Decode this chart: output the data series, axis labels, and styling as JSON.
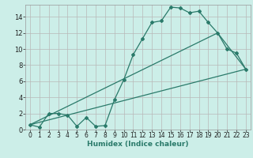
{
  "title": "",
  "xlabel": "Humidex (Indice chaleur)",
  "bg_color": "#cceee8",
  "grid_color": "#b8b8b8",
  "line_color": "#2a7a6a",
  "xlim": [
    -0.5,
    23.5
  ],
  "ylim": [
    0,
    15.5
  ],
  "xticks": [
    0,
    1,
    2,
    3,
    4,
    5,
    6,
    7,
    8,
    9,
    10,
    11,
    12,
    13,
    14,
    15,
    16,
    17,
    18,
    19,
    20,
    21,
    22,
    23
  ],
  "yticks": [
    0,
    2,
    4,
    6,
    8,
    10,
    12,
    14
  ],
  "series1_x": [
    0,
    1,
    2,
    3,
    4,
    5,
    6,
    7,
    8,
    9,
    10,
    11,
    12,
    13,
    14,
    15,
    16,
    17,
    18,
    19,
    20,
    21,
    22,
    23
  ],
  "series1_y": [
    0.6,
    0.3,
    2.0,
    2.0,
    1.8,
    0.4,
    1.5,
    0.4,
    0.5,
    3.7,
    6.2,
    9.3,
    11.3,
    13.3,
    13.5,
    15.2,
    15.1,
    14.5,
    14.7,
    13.3,
    12.0,
    10.0,
    9.5,
    7.5
  ],
  "series2_x": [
    0,
    23
  ],
  "series2_y": [
    0.6,
    7.5
  ],
  "series3_x": [
    0,
    20,
    23
  ],
  "series3_y": [
    0.6,
    12.0,
    7.5
  ]
}
